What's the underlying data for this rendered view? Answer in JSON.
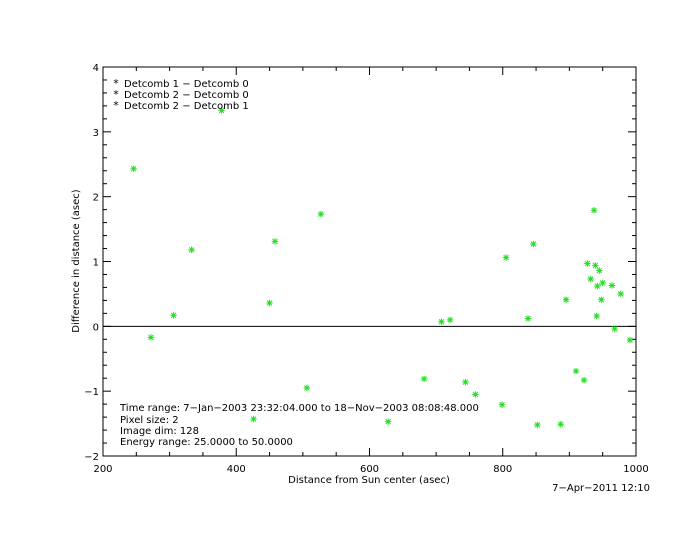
{
  "chart_data": {
    "type": "scatter",
    "title": "",
    "xlabel": "Distance from Sun center (asec)",
    "ylabel": "Difference in distance (asec)",
    "xlim": [
      200,
      1000
    ],
    "ylim": [
      -2,
      4
    ],
    "x_ticks": [
      200,
      400,
      600,
      800,
      1000
    ],
    "x_tick_labels": [
      "200",
      "400",
      "600",
      "800",
      "1000"
    ],
    "y_ticks": [
      -2,
      -1,
      0,
      1,
      2,
      3,
      4
    ],
    "y_tick_labels": [
      "−2",
      "−1",
      "0",
      "1",
      "2",
      "3",
      "4"
    ],
    "zero_line": true,
    "grid": false,
    "legend_position": "top-left",
    "legend": [
      {
        "label": "Detcomb 1 − Detcomb 0",
        "color": "#e60000"
      },
      {
        "label": "Detcomb 2 − Detcomb 0",
        "color": "#22dd22"
      },
      {
        "label": "Detcomb 2 − Detcomb 1",
        "color": "#1a1aa6"
      }
    ],
    "series": [
      {
        "name": "Detcomb 2 − Detcomb 0",
        "color": "#22dd22",
        "marker": "*",
        "points": [
          [
            246,
            2.43
          ],
          [
            272,
            -0.17
          ],
          [
            306,
            0.17
          ],
          [
            333,
            1.18
          ],
          [
            378,
            3.33
          ],
          [
            426,
            -1.43
          ],
          [
            450,
            0.36
          ],
          [
            458,
            1.31
          ],
          [
            506,
            -0.95
          ],
          [
            527,
            1.73
          ],
          [
            628,
            -1.47
          ],
          [
            682,
            -0.81
          ],
          [
            708,
            0.07
          ],
          [
            721,
            0.1
          ],
          [
            744,
            -0.86
          ],
          [
            759,
            -1.05
          ],
          [
            799,
            -1.21
          ],
          [
            805,
            1.06
          ],
          [
            838,
            0.12
          ],
          [
            846,
            1.27
          ],
          [
            852,
            -1.52
          ],
          [
            887,
            -1.51
          ],
          [
            895,
            0.41
          ],
          [
            910,
            -0.69
          ],
          [
            922,
            -0.83
          ],
          [
            927,
            0.97
          ],
          [
            932,
            0.73
          ],
          [
            937,
            1.79
          ],
          [
            939,
            0.94
          ],
          [
            941,
            0.16
          ],
          [
            942,
            0.62
          ],
          [
            945,
            0.86
          ],
          [
            948,
            0.41
          ],
          [
            950,
            0.67
          ],
          [
            964,
            0.63
          ],
          [
            968,
            -0.04
          ],
          [
            977,
            0.5
          ],
          [
            991,
            -0.21
          ]
        ]
      }
    ],
    "annotations": [
      "Time range:  7−Jan−2003 23:32:04.000 to 18−Nov−2003 08:08:48.000",
      "Pixel size: 2",
      "Image dim: 128",
      "Energy range: 25.0000 to 50.0000"
    ],
    "timestamp": "7−Apr−2011 12:10"
  }
}
